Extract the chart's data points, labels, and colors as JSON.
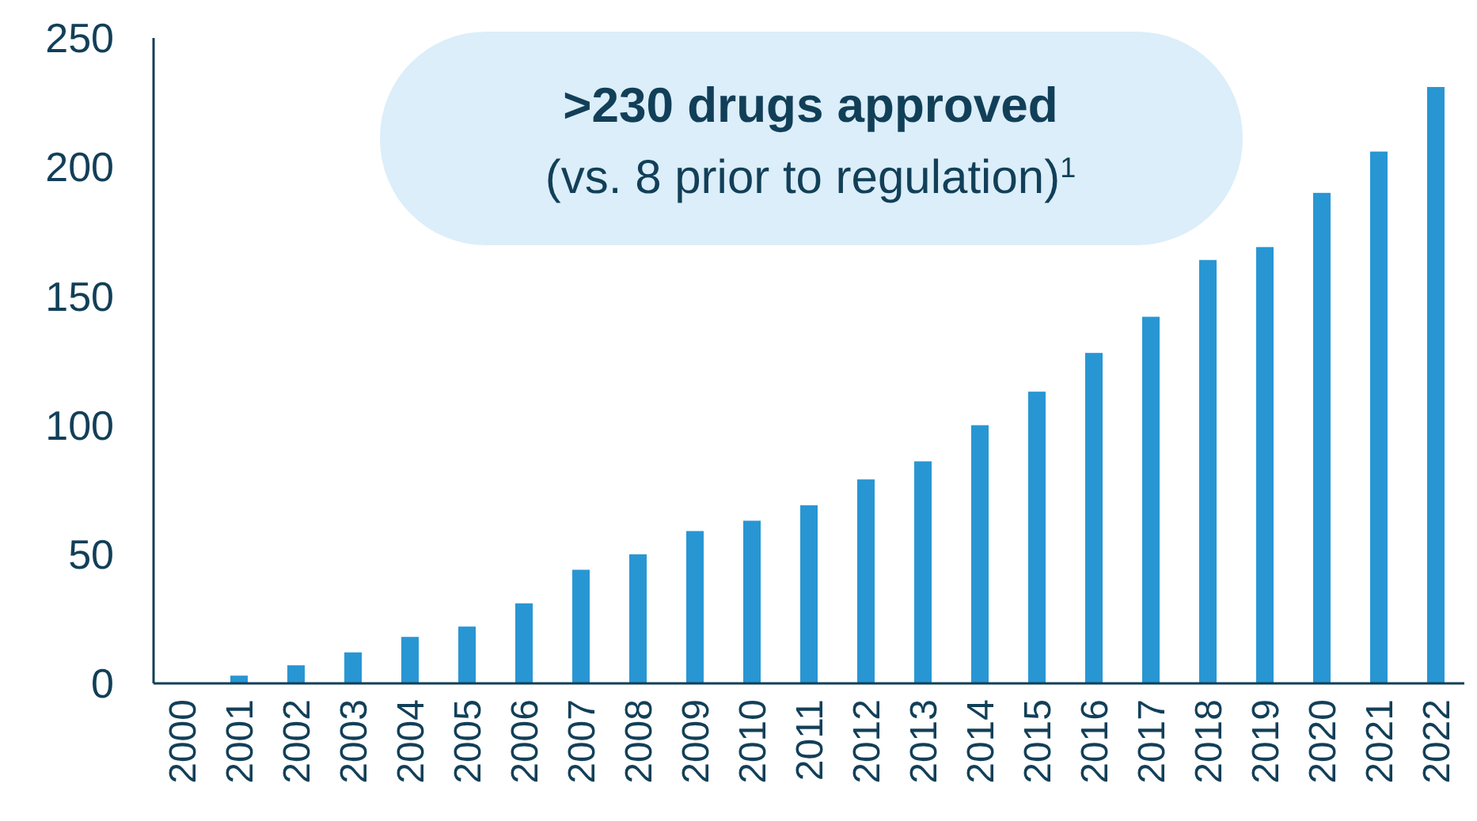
{
  "chart_data": {
    "type": "bar",
    "categories": [
      "2000",
      "2001",
      "2002",
      "2003",
      "2004",
      "2005",
      "2006",
      "2007",
      "2008",
      "2009",
      "2010",
      "2011",
      "2012",
      "2013",
      "2014",
      "2015",
      "2016",
      "2017",
      "2018",
      "2019",
      "2020",
      "2021",
      "2022"
    ],
    "values": [
      0,
      3,
      7,
      12,
      18,
      22,
      31,
      44,
      50,
      59,
      63,
      69,
      79,
      86,
      100,
      113,
      128,
      142,
      164,
      169,
      190,
      206,
      231
    ],
    "color": "#2896d3",
    "ylim": [
      0,
      250
    ],
    "yticks": [
      0,
      50,
      100,
      150,
      200,
      250
    ],
    "grid": false,
    "annotations": [
      ">230 drugs approved",
      "(vs. 8 prior to regulation)$^{1}$"
    ]
  }
}
